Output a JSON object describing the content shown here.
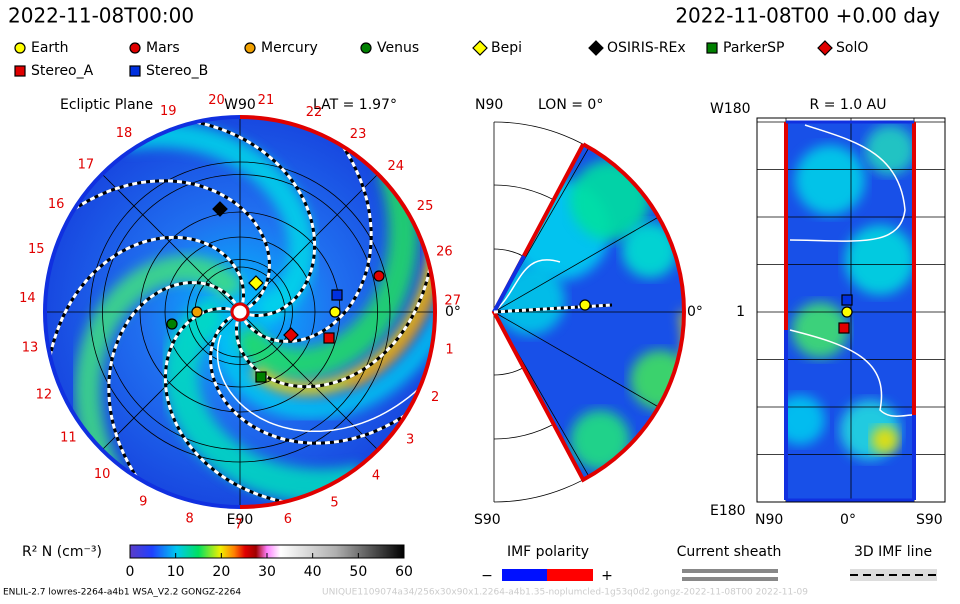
{
  "header": {
    "left_time": "2022-11-08T00:00",
    "right_time": "2022-11-08T00 +0.00 day"
  },
  "legend": [
    {
      "label": "Earth",
      "marker": "circle",
      "color": "#ffff00"
    },
    {
      "label": "Mars",
      "marker": "circle",
      "color": "#e00000"
    },
    {
      "label": "Mercury",
      "marker": "circle",
      "color": "#f0a000"
    },
    {
      "label": "Venus",
      "marker": "circle",
      "color": "#008000"
    },
    {
      "label": "Bepi",
      "marker": "diamond",
      "color": "#ffff00"
    },
    {
      "label": "OSIRIS-REx",
      "marker": "diamond",
      "color": "#000000"
    },
    {
      "label": "ParkerSP",
      "marker": "square",
      "color": "#008000"
    },
    {
      "label": "SolO",
      "marker": "diamond",
      "color": "#e00000"
    },
    {
      "label": "Stereo_A",
      "marker": "square",
      "color": "#e00000"
    },
    {
      "label": "Stereo_B",
      "marker": "square",
      "color": "#0030e0"
    }
  ],
  "ecliptic": {
    "title": "Ecliptic Plane",
    "top": "W90",
    "lat": "LAT = 1.97°",
    "bottom": "E90",
    "right": "0°",
    "clock": [
      "1",
      "2",
      "3",
      "4",
      "5",
      "6",
      "7",
      "8",
      "9",
      "10",
      "11",
      "12",
      "13",
      "14",
      "15",
      "16",
      "17",
      "18",
      "19",
      "20",
      "21",
      "22",
      "23",
      "24",
      "25",
      "26",
      "27"
    ]
  },
  "meridional": {
    "top": "N90",
    "lon": "LON = 0°",
    "right": "0°",
    "bottom": "S90"
  },
  "radial": {
    "top": "W180",
    "title": "R = 1.0 AU",
    "mid": "1",
    "bottom": "E180",
    "x_left": "N90",
    "x_mid": "0°",
    "x_right": "S90"
  },
  "colorbar": {
    "label": "R² N (cm⁻³)",
    "ticks": [
      0,
      10,
      20,
      30,
      40,
      50,
      60
    ]
  },
  "key": {
    "imf": "IMF polarity",
    "minus": "−",
    "plus": "+",
    "sheath": "Current sheath",
    "line3d": "3D IMF line"
  },
  "footer": {
    "left": "ENLIL-2.7 lowres-2264-a4b1 WSA_V2.2 GONGZ-2264",
    "right": "UNIQUE1109074a34/256x30x90x1.2264-a4b1.35-noplumcled-1g53q0d2.gongz-2022-11-08T00   2022-11-09"
  }
}
